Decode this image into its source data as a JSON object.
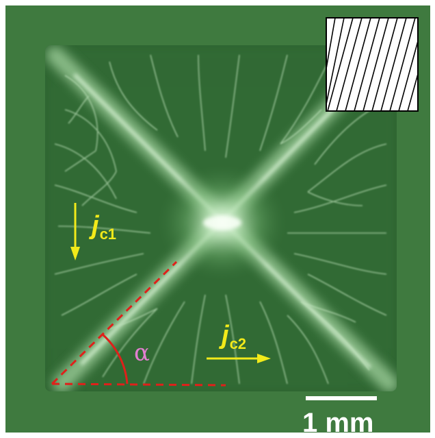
{
  "labels": {
    "jc1_main": "j",
    "jc1_sub": "c1",
    "jc2_main": "j",
    "jc2_sub": "c2",
    "alpha": "α",
    "scale_bar": "1 mm"
  },
  "colors": {
    "background_green": "#3f7a3f",
    "film_dark_green": "#2d6230",
    "current_arrow_yellow": "#f2ea1a",
    "angle_red": "#e0201a",
    "alpha_pink": "#e27fd0",
    "scale_white": "#ffffff"
  }
}
